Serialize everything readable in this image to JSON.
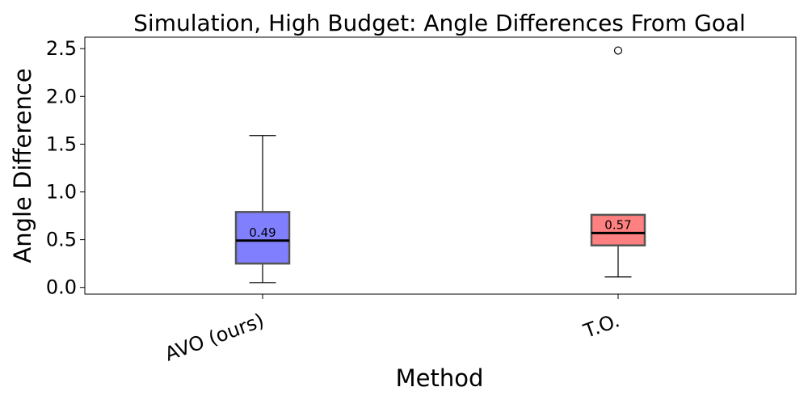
{
  "chart_data": {
    "type": "box",
    "title": "Simulation, High Budget: Angle Differences From Goal",
    "xlabel": "Method",
    "ylabel": "Angle Difference",
    "ylim": [
      -0.07,
      2.62
    ],
    "yticks": [
      "0.0",
      "0.5",
      "1.0",
      "1.5",
      "2.0",
      "2.5"
    ],
    "grid": false,
    "series": [
      {
        "name": "AVO (ours)",
        "whisker_low": 0.05,
        "q1": 0.25,
        "median": 0.49,
        "q3": 0.79,
        "whisker_high": 1.59,
        "outliers": [],
        "median_label": "0.49",
        "color": "#8080ff"
      },
      {
        "name": "T.O.",
        "whisker_low": 0.11,
        "q1": 0.44,
        "median": 0.57,
        "q3": 0.76,
        "whisker_high": 0.76,
        "outliers": [
          2.48
        ],
        "median_label": "0.57",
        "color": "#ff8080"
      }
    ]
  }
}
